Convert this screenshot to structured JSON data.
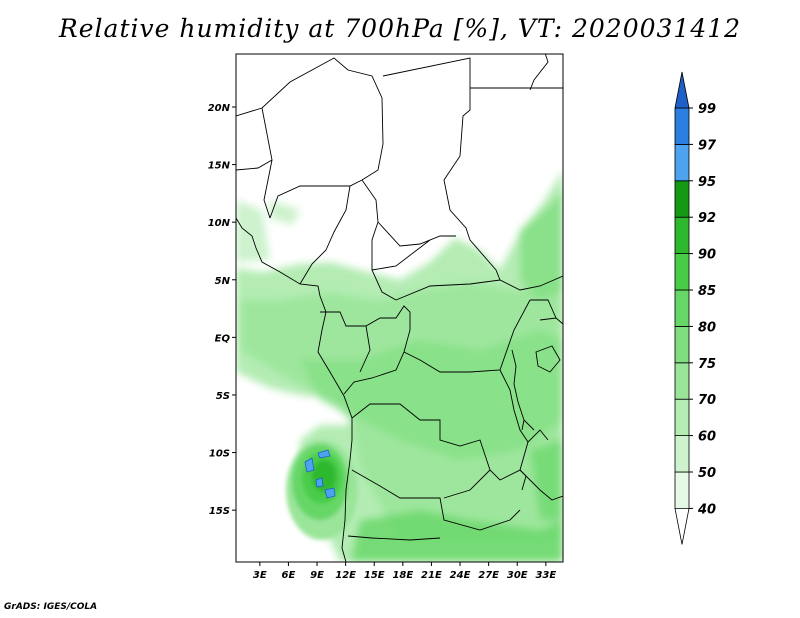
{
  "title": "Relative humidity at 700hPa [%], VT: 2020031412",
  "credit": "GrADS: IGES/COLA",
  "map": {
    "lat_labels": [
      "20N",
      "15N",
      "10N",
      "5N",
      "EQ",
      "5S",
      "10S",
      "15S"
    ],
    "lat_values": [
      20,
      15,
      10,
      5,
      0,
      -5,
      -10,
      -15
    ],
    "lon_labels": [
      "3E",
      "6E",
      "9E",
      "12E",
      "15E",
      "18E",
      "21E",
      "24E",
      "27E",
      "30E",
      "33E"
    ],
    "lon_values": [
      3,
      6,
      9,
      12,
      15,
      18,
      21,
      24,
      27,
      30,
      33
    ],
    "lon_range": [
      0.5,
      34.8
    ],
    "lat_range": [
      -19.5,
      24.6
    ]
  },
  "colorbar": {
    "levels": [
      "40",
      "50",
      "60",
      "70",
      "75",
      "80",
      "85",
      "90",
      "92",
      "95",
      "97",
      "99"
    ],
    "colors": {
      "lt40": "#ffffff",
      "b40_50": "#e6f9e6",
      "b50_60": "#cdf2cd",
      "b60_70": "#b4ecb4",
      "b70_75": "#9ae59a",
      "b75_80": "#80de80",
      "b80_85": "#66d766",
      "b85_90": "#48cc48",
      "b90_92": "#2eb82e",
      "b92_95": "#149914",
      "b95_97": "#4da3f0",
      "b97_99": "#2a7fe0",
      "gt99": "#1f5fc8"
    }
  }
}
